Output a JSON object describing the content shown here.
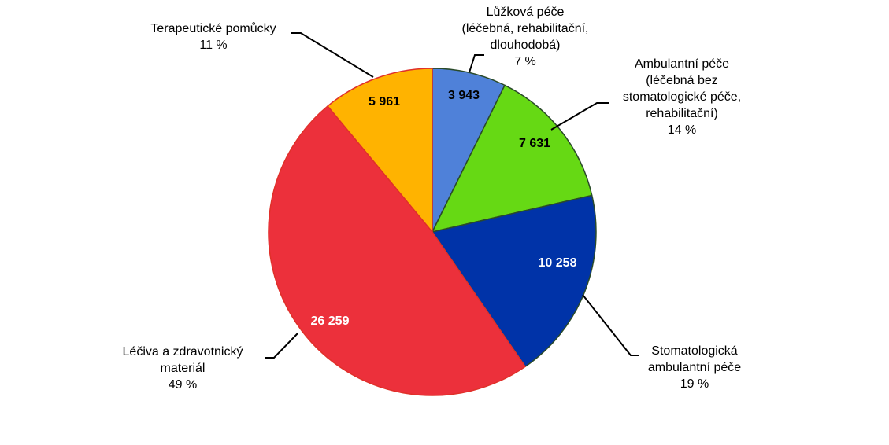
{
  "chart_data": {
    "type": "pie",
    "title": "",
    "start_angle_deg": 0,
    "direction": "clockwise",
    "slices": [
      {
        "value": 3943,
        "value_label": "3 943",
        "percent_label": "7 %",
        "label_lines": [
          "Lůžková  péče",
          "(léčebná,  rehabilitační,",
          "dlouhodobá)"
        ],
        "color": "#4F81D9",
        "value_color": "#000000"
      },
      {
        "value": 7631,
        "value_label": "7 631",
        "percent_label": "14 %",
        "label_lines": [
          "Ambulantní  péče",
          "(léčebná bez",
          "stomatologické  péče,",
          "rehabilitační)"
        ],
        "color": "#66D914",
        "value_color": "#000000"
      },
      {
        "value": 10258,
        "value_label": "10 258",
        "percent_label": "19 %",
        "label_lines": [
          "Stomatologická",
          "ambulantní  péče"
        ],
        "color": "#0033A8",
        "value_color": "#FFFFFF"
      },
      {
        "value": 26259,
        "value_label": "26 259",
        "percent_label": "49 %",
        "label_lines": [
          "Léčiva a zdravotnický",
          "materiál"
        ],
        "color": "#EC303B",
        "value_color": "#FFFFFF"
      },
      {
        "value": 5961,
        "value_label": "5 961",
        "percent_label": "11 %",
        "label_lines": [
          "Terapeutické pomůcky"
        ],
        "color": "#FFB300",
        "value_color": "#000000"
      }
    ]
  }
}
